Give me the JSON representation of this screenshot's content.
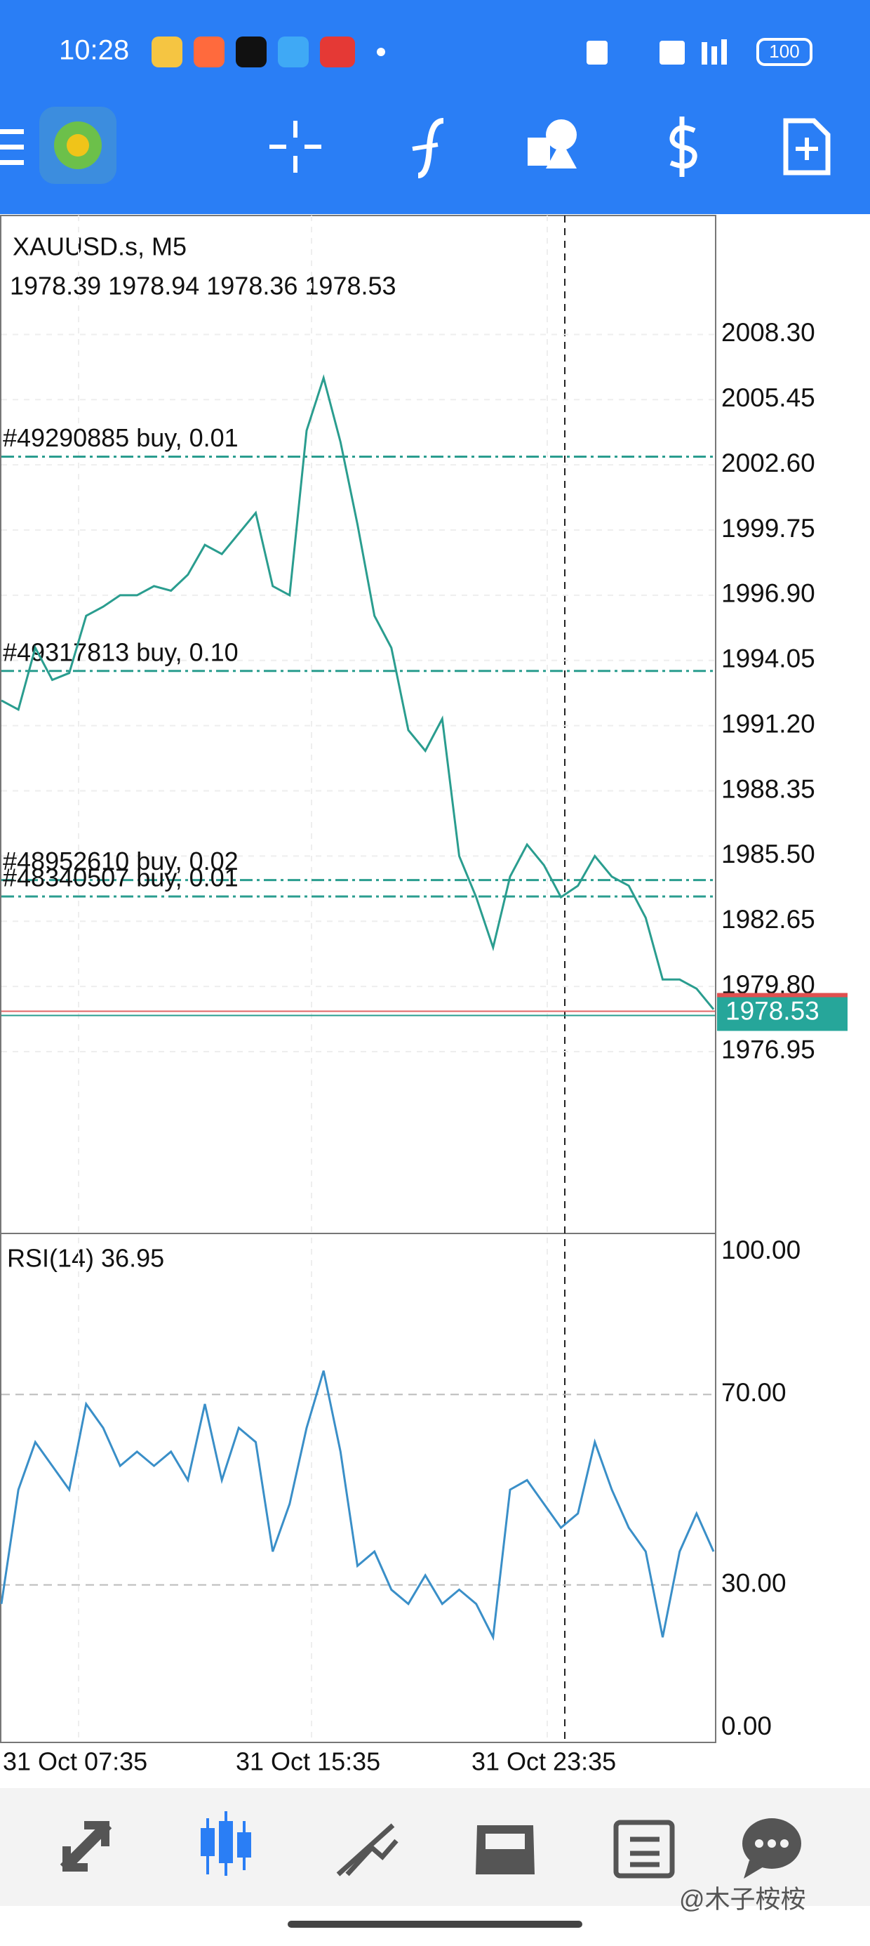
{
  "status_bar": {
    "time": "10:28",
    "battery": "100"
  },
  "chart": {
    "symbol": "XAUUSD.s, M5",
    "ohlc": "1978.39 1978.94 1978.36 1978.53",
    "price_ylim": [
      2013.5,
      1969.0
    ],
    "price_ticks": [
      {
        "value": 2008.3,
        "label": "2008.30"
      },
      {
        "value": 2005.45,
        "label": "2005.45"
      },
      {
        "value": 2002.6,
        "label": "2002.60"
      },
      {
        "value": 1999.75,
        "label": "1999.75"
      },
      {
        "value": 1996.9,
        "label": "1996.90"
      },
      {
        "value": 1994.05,
        "label": "1994.05"
      },
      {
        "value": 1991.2,
        "label": "1991.20"
      },
      {
        "value": 1988.35,
        "label": "1988.35"
      },
      {
        "value": 1985.5,
        "label": "1985.50"
      },
      {
        "value": 1982.65,
        "label": "1982.65"
      },
      {
        "value": 1979.8,
        "label": "1979.80"
      },
      {
        "value": 1976.95,
        "label": "1976.95"
      }
    ],
    "current_price": {
      "value": 1978.53,
      "label": "1978.53"
    },
    "orders": [
      {
        "label": "#49290885 buy, 0.01",
        "price": 2002.96
      },
      {
        "label": "#49317813 buy, 0.10",
        "price": 1993.59
      },
      {
        "label": "#48952610 buy, 0.02",
        "price": 1984.45
      },
      {
        "label": "#48340507 buy, 0.01",
        "price": 1983.73
      }
    ],
    "closes": [
      1992.3,
      1991.9,
      1994.6,
      1993.2,
      1993.5,
      1996.0,
      1996.4,
      1996.9,
      1996.9,
      1997.3,
      1997.1,
      1997.8,
      1999.1,
      1998.7,
      1999.6,
      2000.5,
      1997.3,
      1996.9,
      2004.1,
      2006.4,
      2003.6,
      2000.0,
      1996.0,
      1994.6,
      1991.0,
      1990.1,
      1991.5,
      1985.5,
      1983.7,
      1981.5,
      1984.6,
      1986.0,
      1985.1,
      1983.7,
      1984.2,
      1985.5,
      1984.6,
      1984.2,
      1982.8,
      1980.1,
      1980.1,
      1979.7,
      1978.8
    ],
    "time_labels": [
      "31 Oct 07:35",
      "31 Oct 15:35",
      "31 Oct 23:35"
    ]
  },
  "rsi": {
    "label": "RSI(14) 36.95",
    "ylim": [
      0,
      100
    ],
    "ticks": [
      {
        "value": 100,
        "label": "100.00"
      },
      {
        "value": 70,
        "label": "70.00"
      },
      {
        "value": 30,
        "label": "30.00"
      },
      {
        "value": 0,
        "label": "0.00"
      }
    ],
    "values": [
      26,
      50,
      60,
      55,
      50,
      68,
      63,
      55,
      58,
      55,
      58,
      52,
      68,
      52,
      63,
      60,
      37,
      47,
      63,
      75,
      58,
      34,
      37,
      29,
      26,
      32,
      26,
      29,
      26,
      19,
      50,
      52,
      47,
      42,
      45,
      60,
      50,
      42,
      37,
      19,
      37,
      45,
      37
    ]
  },
  "watermark": "@木子桉桉"
}
